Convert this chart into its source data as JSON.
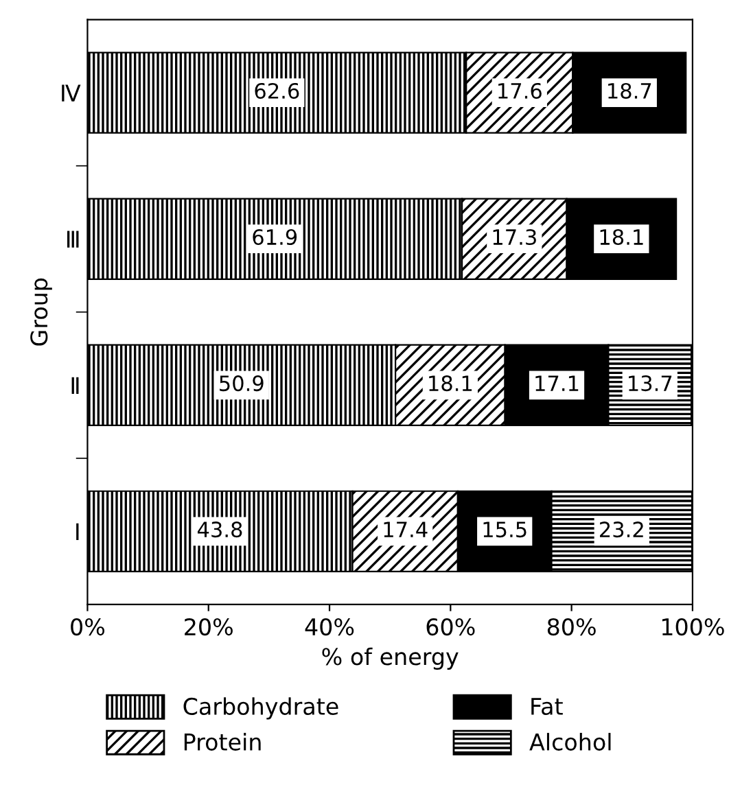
{
  "chart_data": {
    "type": "bar",
    "orientation": "horizontal",
    "stacked": true,
    "xlabel": "% of energy",
    "ylabel": "Group",
    "categories": [
      "Ⅳ",
      "Ⅲ",
      "Ⅱ",
      "Ⅰ"
    ],
    "series": [
      {
        "name": "Carbohydrate",
        "color": "#000000",
        "values": [
          62.6,
          61.9,
          50.9,
          43.8
        ]
      },
      {
        "name": "Protein",
        "color": "#000000",
        "values": [
          17.6,
          17.3,
          18.1,
          17.4
        ]
      },
      {
        "name": "Fat",
        "color": "#000000",
        "values": [
          18.7,
          18.1,
          17.1,
          15.5
        ]
      },
      {
        "name": "Alcohol",
        "color": "#000000",
        "values": [
          null,
          null,
          13.7,
          23.2
        ]
      }
    ],
    "xlim": [
      0,
      100
    ],
    "xticks": [
      {
        "value": 0,
        "label": "0%"
      },
      {
        "value": 20,
        "label": "20%"
      },
      {
        "value": 40,
        "label": "40%"
      },
      {
        "value": 60,
        "label": "60%"
      },
      {
        "value": 80,
        "label": "80%"
      },
      {
        "value": 100,
        "label": "100%"
      }
    ],
    "data_labels": true,
    "grid": false,
    "legend": "bottom"
  }
}
